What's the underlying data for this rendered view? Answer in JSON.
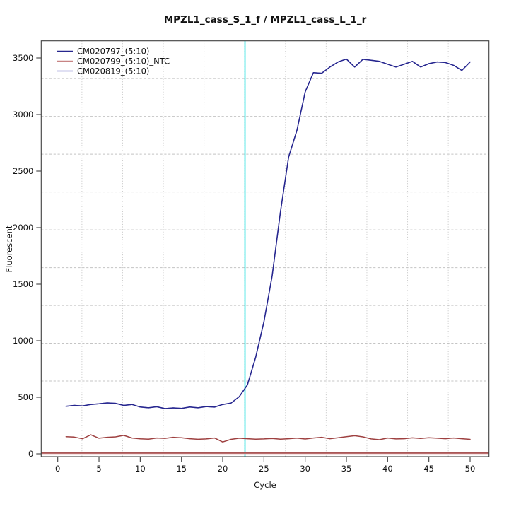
{
  "window": {
    "background": "#ffffff"
  },
  "chart_data": {
    "type": "line",
    "title": "MPZL1_cass_S_1_f / MPZL1_cass_L_1_r",
    "xlabel": "Cycle",
    "ylabel": "Fluorescent",
    "x_ticks": [
      0,
      5,
      10,
      15,
      20,
      25,
      30,
      35,
      40,
      45,
      50
    ],
    "y_ticks": [
      0,
      500,
      1000,
      1500,
      2000,
      2500,
      3000,
      3500
    ],
    "xlim": [
      -1,
      52
    ],
    "ylim": [
      -25,
      3655
    ],
    "grid": {
      "nx": 11,
      "ny": 11,
      "color": "#c4c4c4",
      "vertical_style": "dotted",
      "horizontal_style": "dashed"
    },
    "x": [
      1,
      2,
      3,
      4,
      5,
      6,
      7,
      8,
      9,
      10,
      11,
      12,
      13,
      14,
      15,
      16,
      17,
      18,
      19,
      20,
      21,
      22,
      23,
      24,
      25,
      26,
      27,
      28,
      29,
      30,
      31,
      32,
      33,
      34,
      35,
      36,
      37,
      38,
      39,
      40,
      41,
      42,
      43,
      44,
      45,
      46,
      47,
      48,
      49,
      50
    ],
    "series": [
      {
        "name": "CM020819_(5:10)",
        "color": "#8585cf",
        "legend_order": 3,
        "note": "coincides with CM020797 curve (drawn beneath it)",
        "values": [
          420,
          428,
          424,
          436,
          442,
          450,
          446,
          428,
          436,
          414,
          407,
          416,
          400,
          406,
          402,
          414,
          407,
          418,
          413,
          436,
          448,
          505,
          610,
          855,
          1170,
          1575,
          2140,
          2625,
          2860,
          3200,
          3370,
          3365,
          3420,
          3465,
          3490,
          3420,
          3488,
          3480,
          3470,
          3445,
          3420,
          3445,
          3470,
          3420,
          3450,
          3465,
          3460,
          3435,
          3390,
          3465
        ]
      },
      {
        "name": "CM020799_(5:10)_NTC",
        "color": "#9e4040",
        "legend_color": "#c88484",
        "legend_order": 2,
        "values": [
          152,
          148,
          133,
          168,
          138,
          146,
          150,
          163,
          140,
          133,
          130,
          140,
          137,
          146,
          142,
          134,
          129,
          132,
          140,
          105,
          128,
          138,
          134,
          130,
          132,
          136,
          130,
          134,
          139,
          131,
          140,
          146,
          134,
          142,
          152,
          160,
          150,
          132,
          125,
          140,
          132,
          134,
          141,
          136,
          142,
          138,
          134,
          140,
          134,
          128
        ]
      },
      {
        "name": "CM020797_(5:10)",
        "color": "#26268e",
        "legend_order": 1,
        "values": [
          420,
          428,
          424,
          436,
          442,
          450,
          446,
          428,
          436,
          414,
          407,
          416,
          400,
          406,
          402,
          414,
          407,
          418,
          413,
          436,
          448,
          505,
          610,
          855,
          1170,
          1575,
          2140,
          2625,
          2860,
          3200,
          3370,
          3365,
          3420,
          3465,
          3490,
          3420,
          3488,
          3480,
          3470,
          3445,
          3420,
          3445,
          3470,
          3420,
          3450,
          3465,
          3460,
          3435,
          3390,
          3465
        ]
      }
    ],
    "legend": {
      "position": "top-left",
      "entries": [
        "CM020797_(5:10)",
        "CM020799_(5:10)_NTC",
        "CM020819_(5:10)"
      ]
    },
    "annotations": {
      "ct_line": {
        "orientation": "vertical",
        "cycle": 22.7,
        "color": "#00dcdc"
      },
      "threshold_line": {
        "orientation": "horizontal",
        "fluorescence": 7,
        "halo_color": "#d49090",
        "core_color": "#8f3535"
      }
    },
    "frame_color": "#3f3f3f"
  }
}
